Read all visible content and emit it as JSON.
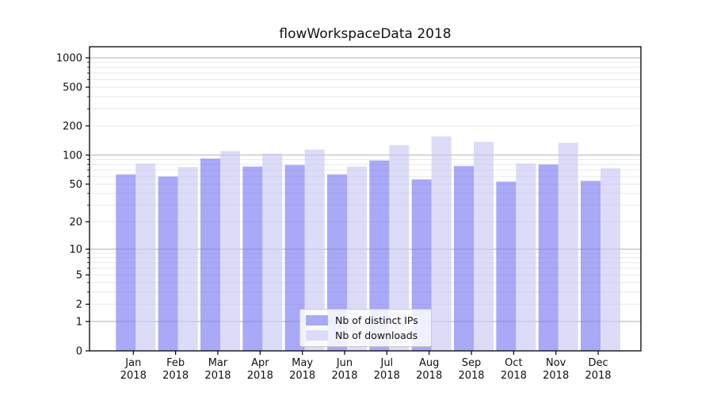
{
  "chart": {
    "title": "flowWorkspaceData 2018"
  },
  "legend": {
    "items": [
      {
        "label": "Nb of distinct IPs"
      },
      {
        "label": "Nb of downloads"
      }
    ]
  },
  "chart_data": {
    "type": "bar",
    "title": "flowWorkspaceData 2018",
    "categories": [
      "Jan 2018",
      "Feb 2018",
      "Mar 2018",
      "Apr 2018",
      "May 2018",
      "Jun 2018",
      "Jul 2018",
      "Aug 2018",
      "Sep 2018",
      "Oct 2018",
      "Nov 2018",
      "Dec 2018"
    ],
    "month_labels": [
      "Jan",
      "Feb",
      "Mar",
      "Apr",
      "May",
      "Jun",
      "Jul",
      "Aug",
      "Sep",
      "Oct",
      "Nov",
      "Dec"
    ],
    "year_label": "2018",
    "series": [
      {
        "name": "Nb of distinct IPs",
        "color": "#a9a9f7",
        "values": [
          63,
          60,
          92,
          76,
          79,
          63,
          88,
          56,
          77,
          53,
          80,
          54
        ]
      },
      {
        "name": "Nb of downloads",
        "color": "#dcdcf8",
        "values": [
          82,
          75,
          110,
          104,
          114,
          76,
          127,
          156,
          137,
          82,
          134,
          73
        ]
      }
    ],
    "yscale": "log1p",
    "xlabel": "",
    "ylabel": "",
    "yticks": [
      0,
      1,
      2,
      5,
      10,
      20,
      50,
      100,
      200,
      500,
      1000
    ],
    "ylim": [
      0,
      1300
    ],
    "grid": "horizontal major+minor",
    "legend_position": "lower center",
    "bar_opacity": 0.65
  },
  "colors": {
    "bar_distinct_ips": "#a9a9f7",
    "bar_downloads": "#dcdcf8",
    "major_grid": "#b0b0b0",
    "minor_grid": "#e9e9e9",
    "axis": "#000000",
    "background": "#ffffff"
  }
}
